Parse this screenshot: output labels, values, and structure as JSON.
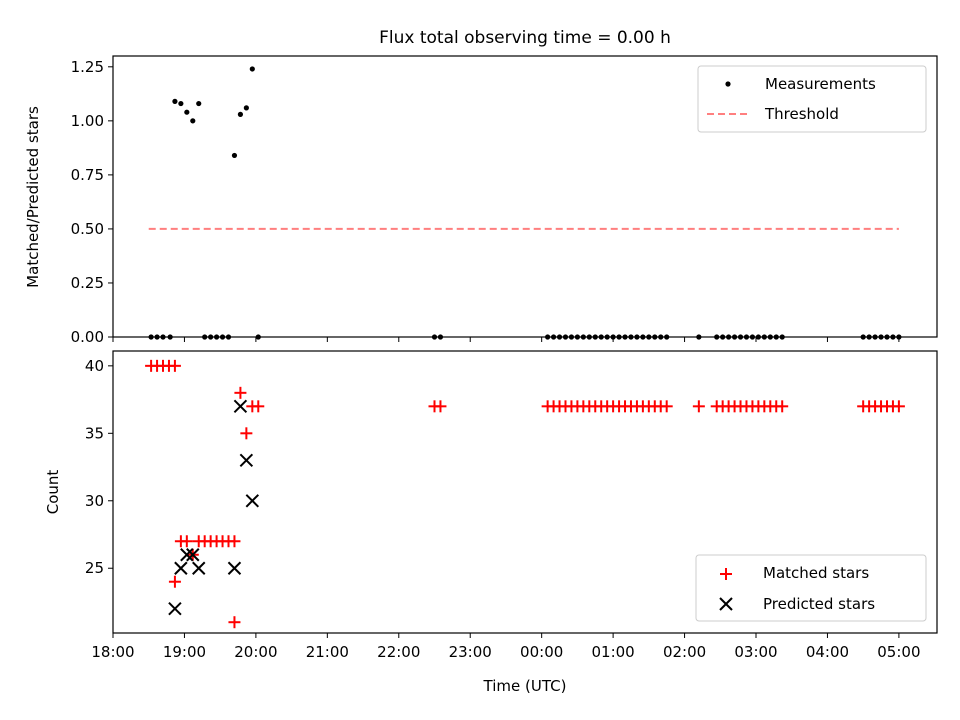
{
  "chart_data": [
    {
      "type": "scatter",
      "title": "Flux total observing time = 0.00 h",
      "ylabel": "Matched/Predicted stars",
      "ylim": [
        0.0,
        1.3
      ],
      "yticks": [
        "0.00",
        "0.25",
        "0.50",
        "0.75",
        "1.00",
        "1.25"
      ],
      "legend_position": "top-right",
      "series": [
        {
          "name": "Measurements",
          "marker": "dot",
          "color": "#000000",
          "points": [
            [
              "18:32",
              0
            ],
            [
              "18:37",
              0
            ],
            [
              "18:42",
              0
            ],
            [
              "18:48",
              0
            ],
            [
              "18:52",
              1.09
            ],
            [
              "18:57",
              1.08
            ],
            [
              "19:02",
              1.04
            ],
            [
              "19:07",
              1.0
            ],
            [
              "19:12",
              1.08
            ],
            [
              "19:17",
              0
            ],
            [
              "19:22",
              0
            ],
            [
              "19:27",
              0
            ],
            [
              "19:32",
              0
            ],
            [
              "19:37",
              0
            ],
            [
              "19:42",
              0.84
            ],
            [
              "19:47",
              1.03
            ],
            [
              "19:52",
              1.06
            ],
            [
              "19:57",
              1.24
            ],
            [
              "20:02",
              0
            ],
            [
              "22:30",
              0
            ],
            [
              "22:35",
              0
            ],
            [
              "00:05",
              0
            ],
            [
              "00:10",
              0
            ],
            [
              "00:15",
              0
            ],
            [
              "00:20",
              0
            ],
            [
              "00:25",
              0
            ],
            [
              "00:30",
              0
            ],
            [
              "00:35",
              0
            ],
            [
              "00:40",
              0
            ],
            [
              "00:45",
              0
            ],
            [
              "00:50",
              0
            ],
            [
              "00:55",
              0
            ],
            [
              "01:00",
              0
            ],
            [
              "01:05",
              0
            ],
            [
              "01:10",
              0
            ],
            [
              "01:15",
              0
            ],
            [
              "01:20",
              0
            ],
            [
              "01:25",
              0
            ],
            [
              "01:30",
              0
            ],
            [
              "01:35",
              0
            ],
            [
              "01:40",
              0
            ],
            [
              "01:45",
              0
            ],
            [
              "02:12",
              0
            ],
            [
              "02:27",
              0
            ],
            [
              "02:32",
              0
            ],
            [
              "02:37",
              0
            ],
            [
              "02:42",
              0
            ],
            [
              "02:47",
              0
            ],
            [
              "02:52",
              0
            ],
            [
              "02:57",
              0
            ],
            [
              "03:02",
              0
            ],
            [
              "03:07",
              0
            ],
            [
              "03:12",
              0
            ],
            [
              "03:17",
              0
            ],
            [
              "03:22",
              0
            ],
            [
              "04:30",
              0
            ],
            [
              "04:35",
              0
            ],
            [
              "04:40",
              0
            ],
            [
              "04:45",
              0
            ],
            [
              "04:50",
              0
            ],
            [
              "04:55",
              0
            ],
            [
              "05:00",
              0
            ]
          ]
        },
        {
          "name": "Threshold",
          "marker": "dashed-line",
          "color": "#ff7f7f",
          "points": [
            [
              "18:30",
              0.5
            ],
            [
              "05:00",
              0.5
            ]
          ]
        }
      ]
    },
    {
      "type": "scatter",
      "xlabel": "Time (UTC)",
      "ylabel": "Count",
      "ylim": [
        20.2,
        41.1
      ],
      "yticks": [
        "25",
        "30",
        "35",
        "40"
      ],
      "xticks": [
        "18:00",
        "19:00",
        "20:00",
        "21:00",
        "22:00",
        "23:00",
        "00:00",
        "01:00",
        "02:00",
        "03:00",
        "04:00",
        "05:00"
      ],
      "xlim": [
        "18:00",
        "05:32"
      ],
      "legend_position": "bottom-right",
      "series": [
        {
          "name": "Matched stars",
          "marker": "plus",
          "color": "#ff0000",
          "points": [
            [
              "18:32",
              40
            ],
            [
              "18:37",
              40
            ],
            [
              "18:42",
              40
            ],
            [
              "18:47",
              40
            ],
            [
              "18:52",
              40
            ],
            [
              "18:52",
              24
            ],
            [
              "18:57",
              27
            ],
            [
              "19:02",
              27
            ],
            [
              "19:07",
              26
            ],
            [
              "19:12",
              27
            ],
            [
              "19:17",
              27
            ],
            [
              "19:22",
              27
            ],
            [
              "19:27",
              27
            ],
            [
              "19:32",
              27
            ],
            [
              "19:37",
              27
            ],
            [
              "19:42",
              27
            ],
            [
              "19:42",
              21
            ],
            [
              "19:47",
              38
            ],
            [
              "19:52",
              35
            ],
            [
              "19:57",
              37
            ],
            [
              "20:02",
              37
            ],
            [
              "22:30",
              37
            ],
            [
              "22:35",
              37
            ],
            [
              "00:05",
              37
            ],
            [
              "00:10",
              37
            ],
            [
              "00:15",
              37
            ],
            [
              "00:20",
              37
            ],
            [
              "00:25",
              37
            ],
            [
              "00:30",
              37
            ],
            [
              "00:35",
              37
            ],
            [
              "00:40",
              37
            ],
            [
              "00:45",
              37
            ],
            [
              "00:50",
              37
            ],
            [
              "00:55",
              37
            ],
            [
              "01:00",
              37
            ],
            [
              "01:05",
              37
            ],
            [
              "01:10",
              37
            ],
            [
              "01:15",
              37
            ],
            [
              "01:20",
              37
            ],
            [
              "01:25",
              37
            ],
            [
              "01:30",
              37
            ],
            [
              "01:35",
              37
            ],
            [
              "01:40",
              37
            ],
            [
              "01:45",
              37
            ],
            [
              "02:12",
              37
            ],
            [
              "02:27",
              37
            ],
            [
              "02:32",
              37
            ],
            [
              "02:37",
              37
            ],
            [
              "02:42",
              37
            ],
            [
              "02:47",
              37
            ],
            [
              "02:52",
              37
            ],
            [
              "02:57",
              37
            ],
            [
              "03:02",
              37
            ],
            [
              "03:07",
              37
            ],
            [
              "03:12",
              37
            ],
            [
              "03:17",
              37
            ],
            [
              "03:22",
              37
            ],
            [
              "04:30",
              37
            ],
            [
              "04:35",
              37
            ],
            [
              "04:40",
              37
            ],
            [
              "04:45",
              37
            ],
            [
              "04:50",
              37
            ],
            [
              "04:55",
              37
            ],
            [
              "05:00",
              37
            ]
          ]
        },
        {
          "name": "Predicted stars",
          "marker": "x",
          "color": "#000000",
          "points": [
            [
              "18:52",
              22
            ],
            [
              "18:57",
              25
            ],
            [
              "19:02",
              26
            ],
            [
              "19:07",
              26
            ],
            [
              "19:12",
              25
            ],
            [
              "19:42",
              25
            ],
            [
              "19:47",
              37
            ],
            [
              "19:52",
              33
            ],
            [
              "19:57",
              30
            ]
          ]
        }
      ]
    }
  ]
}
